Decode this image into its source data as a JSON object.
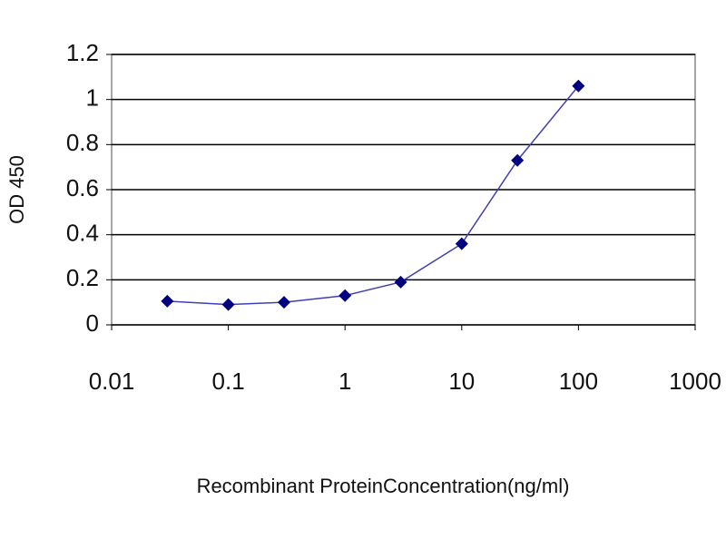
{
  "chart_data": {
    "type": "line",
    "x": [
      0.03,
      0.1,
      0.3,
      1,
      3,
      10,
      30,
      100
    ],
    "values": [
      0.105,
      0.09,
      0.1,
      0.13,
      0.19,
      0.36,
      0.73,
      1.06
    ],
    "color": "#000080",
    "line_color": "#4040b0",
    "x_label": "Recombinant ProteinConcentration(ng/ml)",
    "y_label": "OD 450",
    "xscale": "log",
    "xlim": [
      0.01,
      1000
    ],
    "xticks": [
      0.01,
      0.1,
      1,
      10,
      100,
      1000
    ],
    "ylim": [
      0,
      1.2
    ],
    "yticks": [
      0,
      0.2,
      0.4,
      0.6,
      0.8,
      1,
      1.2
    ],
    "grid": true
  }
}
